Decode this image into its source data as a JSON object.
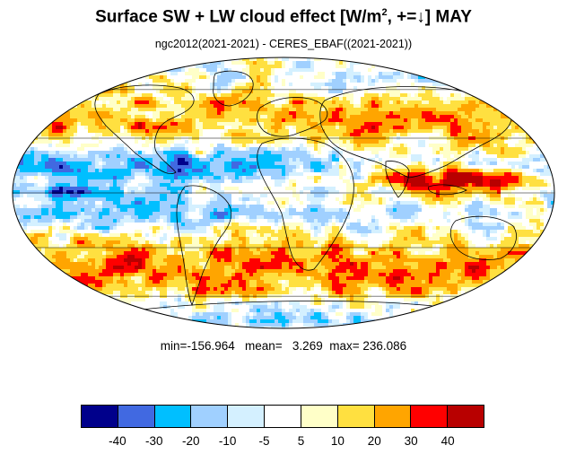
{
  "title": {
    "prefix": "Surface SW + LW cloud effect [W/m",
    "sup": "2",
    "suffix": ", +=↓]  MAY"
  },
  "subtitle": "ngc2012(2021-2021) - CERES_EBAF((2021-2021))",
  "stats": {
    "min_label": "min=",
    "min": "-156.964",
    "mean_label": "mean=",
    "mean": "3.269",
    "max_label": "max=",
    "max": "236.086"
  },
  "colorbar": {
    "colors": [
      "#00008b",
      "#4169e1",
      "#00bfff",
      "#a0d0ff",
      "#d4f0ff",
      "#ffffff",
      "#ffffc8",
      "#ffe040",
      "#ffa500",
      "#ff0000",
      "#b80000"
    ],
    "labels": [
      "-40",
      "-30",
      "-20",
      "-10",
      "-5",
      "5",
      "10",
      "20",
      "30",
      "40"
    ]
  },
  "map": {
    "projection": "Mollweide",
    "ocean_base_color": "#ffffff",
    "coastline_color": "#000000",
    "gridline_color": "#000000"
  }
}
